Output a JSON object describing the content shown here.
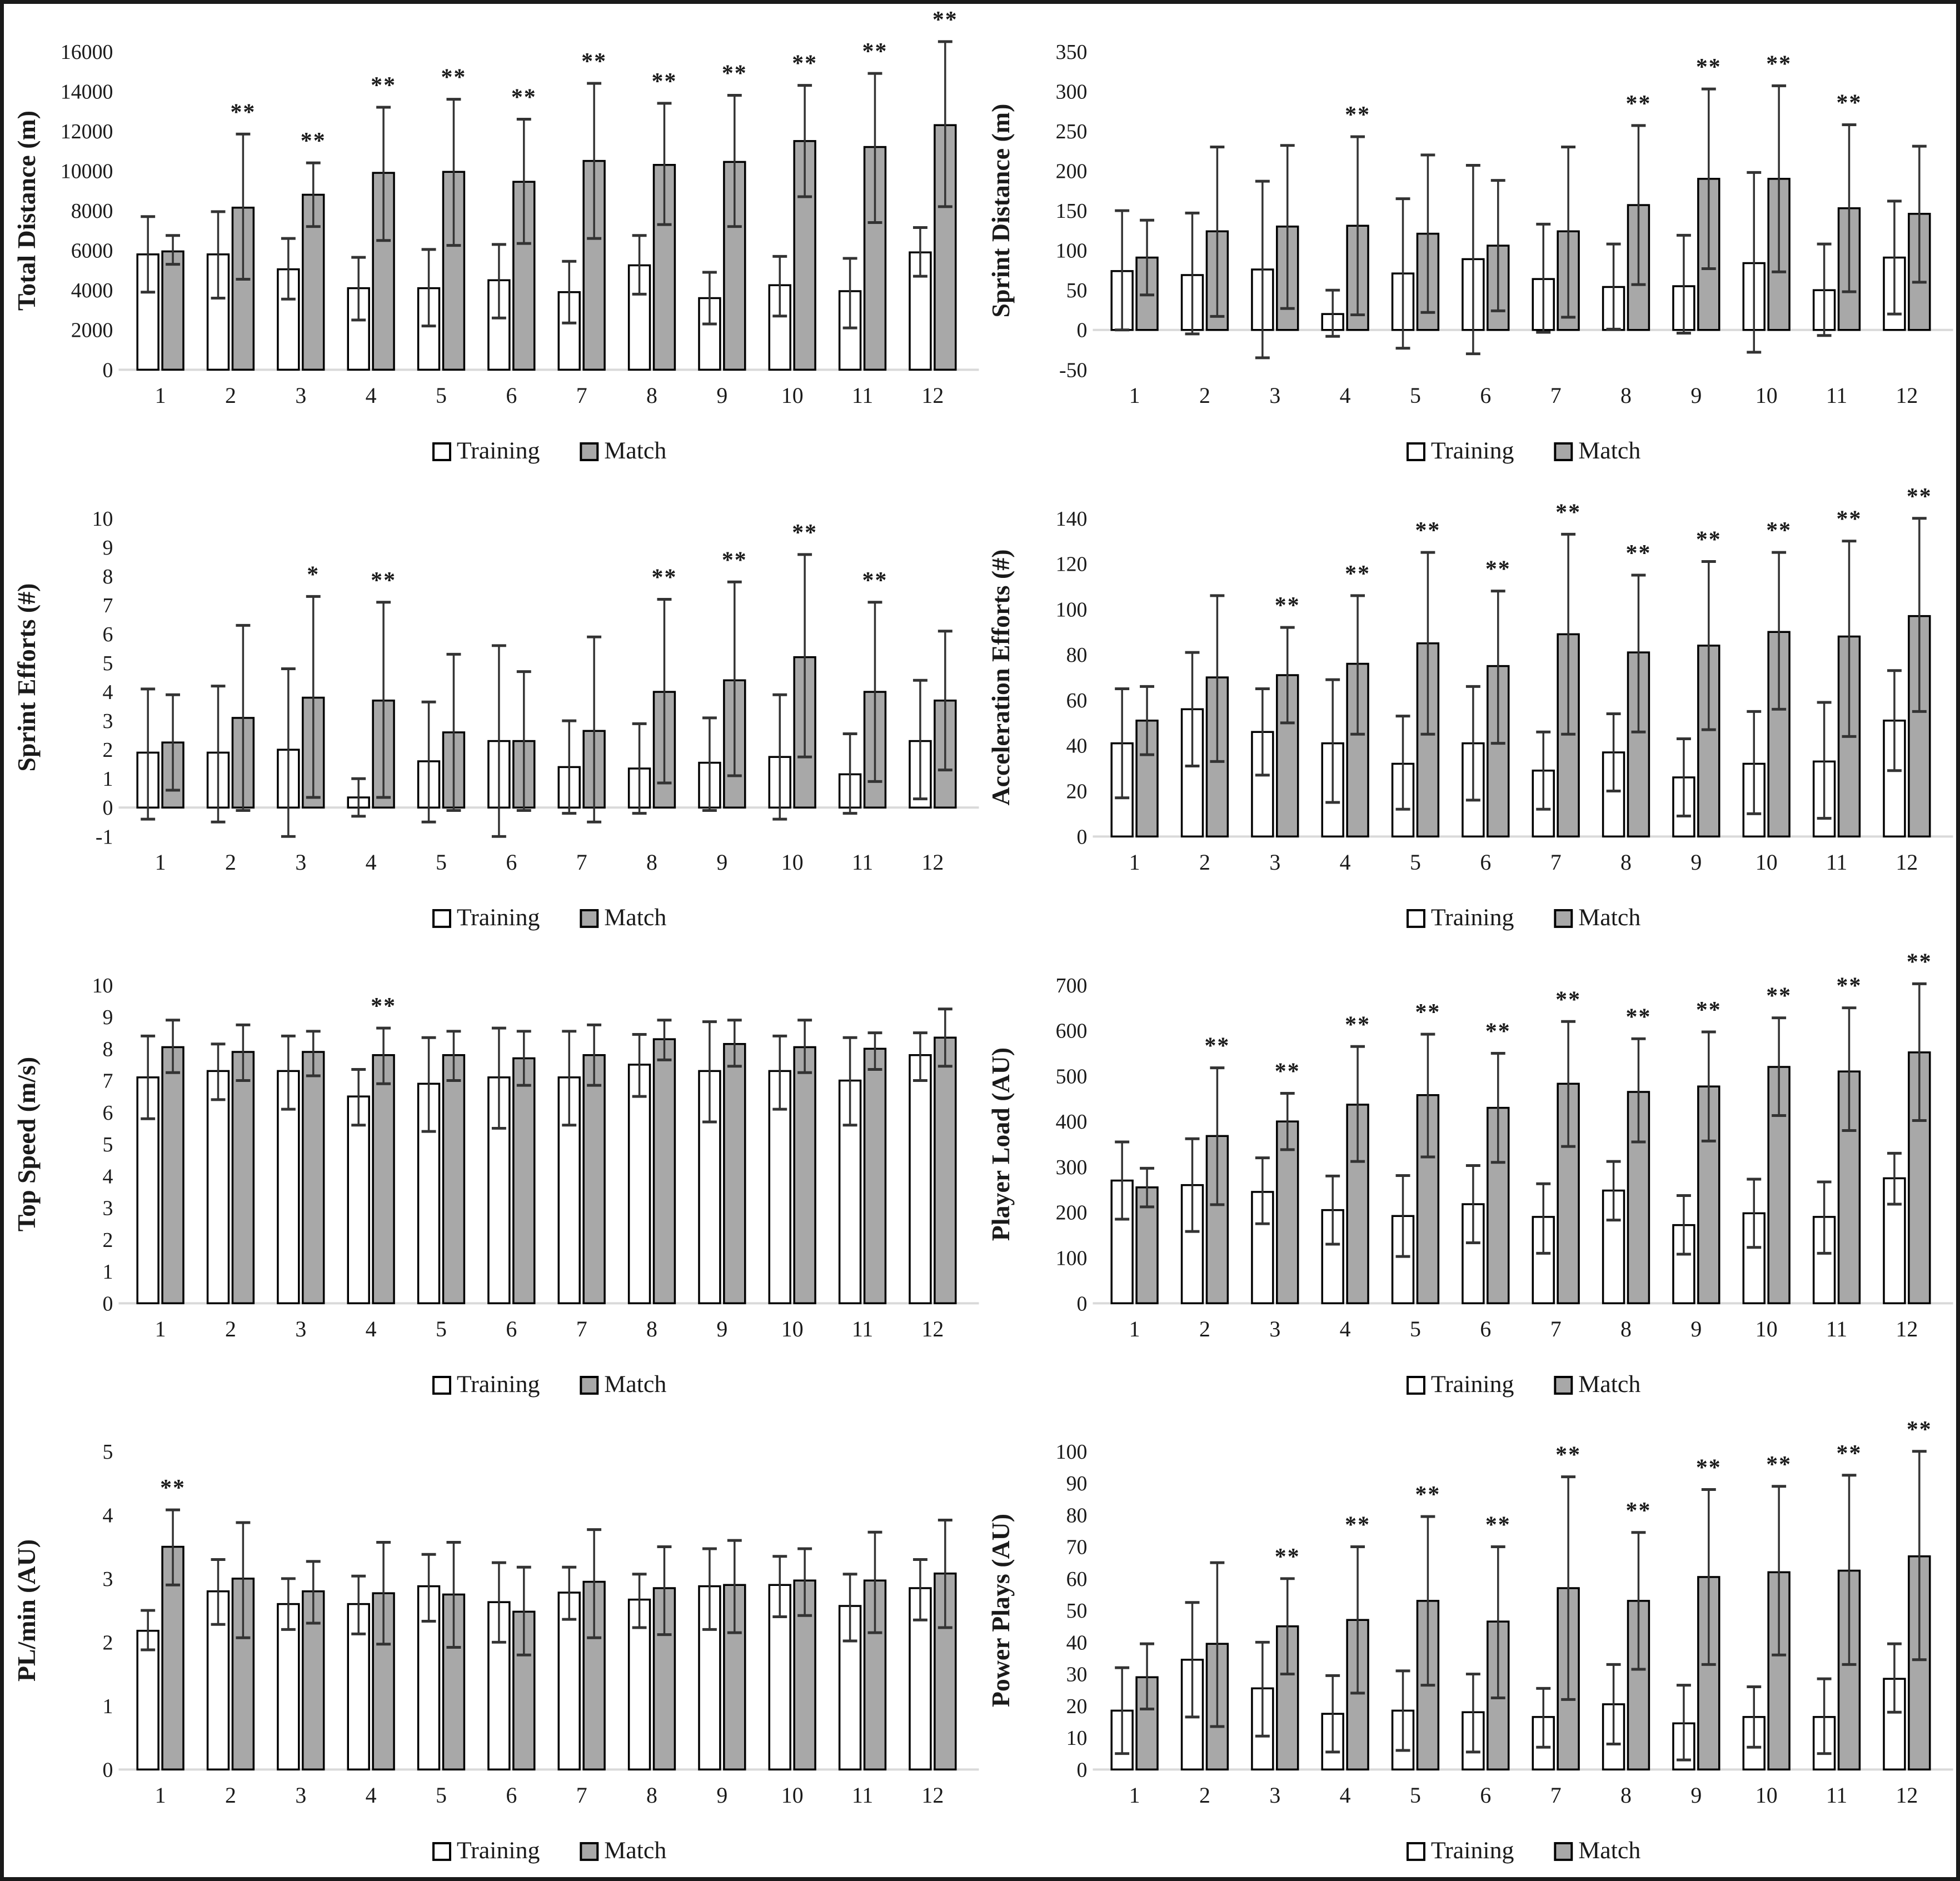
{
  "figure": {
    "legend": {
      "training": "Training",
      "match": "Match"
    },
    "colors": {
      "training_fill": "#ffffff",
      "match_fill": "#a8a8a8",
      "bar_stroke": "#000000",
      "error_bar": "#333333",
      "baseline": "#d9d9d9",
      "text": "#1a1a1a",
      "frame": "#1a1a1a"
    },
    "significance_note_markers": [
      "*",
      "**"
    ]
  },
  "chart_data": [
    {
      "type": "bar",
      "id": "total-distance",
      "ylabel": "Total Distance (m)",
      "ylim": [
        0,
        16000
      ],
      "ystep": 2000,
      "grid": false,
      "legend_position": "bottom",
      "categories": [
        "1",
        "2",
        "3",
        "4",
        "5",
        "6",
        "7",
        "8",
        "9",
        "10",
        "11",
        "12"
      ],
      "series": [
        {
          "name": "Training",
          "values": [
            5800,
            5800,
            5050,
            4100,
            4100,
            4500,
            3900,
            5250,
            3600,
            4250,
            3950,
            5900
          ],
          "err_low": [
            3900,
            3600,
            3550,
            2500,
            2200,
            2600,
            2350,
            3800,
            2300,
            2700,
            2100,
            4700
          ],
          "err_high": [
            7700,
            7950,
            6600,
            5650,
            6050,
            6300,
            5450,
            6750,
            4900,
            5700,
            5600,
            7150
          ]
        },
        {
          "name": "Match",
          "values": [
            5950,
            8150,
            8800,
            9900,
            9950,
            9450,
            10500,
            10300,
            10450,
            11500,
            11200,
            12300
          ],
          "err_low": [
            5300,
            4550,
            7200,
            6500,
            6250,
            6350,
            6600,
            7300,
            7200,
            8700,
            7400,
            8200
          ],
          "err_high": [
            6750,
            11850,
            10400,
            13200,
            13600,
            12600,
            14400,
            13400,
            13800,
            14300,
            14900,
            16500
          ]
        }
      ],
      "sig_match": [
        "",
        "**",
        "**",
        "**",
        "**",
        "**",
        "**",
        "**",
        "**",
        "**",
        "**",
        "**"
      ]
    },
    {
      "type": "bar",
      "id": "sprint-distance",
      "ylabel": "Sprint Distance (m)",
      "ylim": [
        -50,
        350
      ],
      "ystep": 50,
      "grid": false,
      "legend_position": "bottom",
      "categories": [
        "1",
        "2",
        "3",
        "4",
        "5",
        "6",
        "7",
        "8",
        "9",
        "10",
        "11",
        "12"
      ],
      "series": [
        {
          "name": "Training",
          "values": [
            74,
            69,
            76,
            20,
            71,
            89,
            64,
            54,
            55,
            84,
            50,
            91
          ],
          "err_low": [
            0,
            -5,
            -35,
            -8,
            -23,
            -30,
            -3,
            1,
            -4,
            -28,
            -7,
            20
          ],
          "err_high": [
            150,
            147,
            187,
            50,
            165,
            207,
            133,
            108,
            119,
            198,
            108,
            162
          ]
        },
        {
          "name": "Match",
          "values": [
            91,
            124,
            130,
            131,
            121,
            106,
            124,
            157,
            190,
            190,
            153,
            146
          ],
          "err_low": [
            44,
            17,
            27,
            19,
            22,
            24,
            16,
            57,
            77,
            73,
            48,
            60
          ],
          "err_high": [
            138,
            230,
            232,
            243,
            220,
            188,
            230,
            257,
            303,
            307,
            258,
            231
          ]
        }
      ],
      "sig_match": [
        "",
        "",
        "",
        "**",
        "",
        "",
        "",
        "**",
        "**",
        "**",
        "**",
        ""
      ]
    },
    {
      "type": "bar",
      "id": "sprint-efforts",
      "ylabel": "Sprint Efforts (#)",
      "ylim": [
        -1,
        10
      ],
      "ystep": 1,
      "grid": false,
      "legend_position": "bottom",
      "categories": [
        "1",
        "2",
        "3",
        "4",
        "5",
        "6",
        "7",
        "8",
        "9",
        "10",
        "11",
        "12"
      ],
      "series": [
        {
          "name": "Training",
          "values": [
            1.9,
            1.9,
            2.0,
            0.35,
            1.6,
            2.3,
            1.4,
            1.35,
            1.55,
            1.75,
            1.15,
            2.3
          ],
          "err_low": [
            -0.4,
            -0.5,
            -1.0,
            -0.3,
            -0.5,
            -1.0,
            -0.2,
            -0.2,
            -0.1,
            -0.4,
            -0.2,
            0.3
          ],
          "err_high": [
            4.1,
            4.2,
            4.8,
            1.0,
            3.65,
            5.6,
            3.0,
            2.9,
            3.1,
            3.9,
            2.55,
            4.4
          ]
        },
        {
          "name": "Match",
          "values": [
            2.25,
            3.1,
            3.8,
            3.7,
            2.6,
            2.3,
            2.65,
            4.0,
            4.4,
            5.2,
            4.0,
            3.7
          ],
          "err_low": [
            0.6,
            -0.1,
            0.35,
            0.35,
            -0.1,
            -0.1,
            -0.5,
            0.85,
            1.1,
            1.75,
            0.9,
            1.3
          ],
          "err_high": [
            3.9,
            6.3,
            7.3,
            7.1,
            5.3,
            4.7,
            5.9,
            7.2,
            7.8,
            8.75,
            7.1,
            6.1
          ]
        }
      ],
      "sig_match": [
        "",
        "",
        "*",
        "**",
        "",
        "",
        "",
        "**",
        "**",
        "**",
        "**",
        ""
      ]
    },
    {
      "type": "bar",
      "id": "acceleration-efforts",
      "ylabel": "Acceleration Efforts (#)",
      "ylim": [
        0,
        140
      ],
      "ystep": 20,
      "grid": false,
      "legend_position": "bottom",
      "categories": [
        "1",
        "2",
        "3",
        "4",
        "5",
        "6",
        "7",
        "8",
        "9",
        "10",
        "11",
        "12"
      ],
      "series": [
        {
          "name": "Training",
          "values": [
            41,
            56,
            46,
            41,
            32,
            41,
            29,
            37,
            26,
            32,
            33,
            51
          ],
          "err_low": [
            17,
            31,
            27,
            15,
            12,
            16,
            12,
            20,
            9,
            10,
            8,
            29
          ],
          "err_high": [
            65,
            81,
            65,
            69,
            53,
            66,
            46,
            54,
            43,
            55,
            59,
            73
          ]
        },
        {
          "name": "Match",
          "values": [
            51,
            70,
            71,
            76,
            85,
            75,
            89,
            81,
            84,
            90,
            88,
            97
          ],
          "err_low": [
            36,
            33,
            50,
            45,
            45,
            41,
            45,
            46,
            47,
            56,
            44,
            55
          ],
          "err_high": [
            66,
            106,
            92,
            106,
            125,
            108,
            133,
            115,
            121,
            125,
            130,
            140
          ]
        }
      ],
      "sig_match": [
        "",
        "",
        "**",
        "**",
        "**",
        "**",
        "**",
        "**",
        "**",
        "**",
        "**",
        "**"
      ]
    },
    {
      "type": "bar",
      "id": "top-speed",
      "ylabel": "Top Speed (m/s)",
      "ylim": [
        0,
        10
      ],
      "ystep": 1,
      "grid": false,
      "legend_position": "bottom",
      "categories": [
        "1",
        "2",
        "3",
        "4",
        "5",
        "6",
        "7",
        "8",
        "9",
        "10",
        "11",
        "12"
      ],
      "series": [
        {
          "name": "Training",
          "values": [
            7.1,
            7.3,
            7.3,
            6.5,
            6.9,
            7.1,
            7.1,
            7.5,
            7.3,
            7.3,
            7.0,
            7.8
          ],
          "err_low": [
            5.8,
            6.4,
            6.1,
            5.6,
            5.4,
            5.5,
            5.6,
            6.5,
            5.7,
            6.1,
            5.6,
            7.0
          ],
          "err_high": [
            8.4,
            8.15,
            8.4,
            7.35,
            8.35,
            8.65,
            8.55,
            8.45,
            8.85,
            8.4,
            8.35,
            8.5
          ]
        },
        {
          "name": "Match",
          "values": [
            8.05,
            7.9,
            7.9,
            7.8,
            7.8,
            7.7,
            7.8,
            8.3,
            8.15,
            8.05,
            8.0,
            8.35
          ],
          "err_low": [
            7.25,
            7.0,
            7.15,
            6.9,
            7.0,
            6.85,
            6.85,
            7.65,
            7.45,
            7.25,
            7.35,
            7.45
          ],
          "err_high": [
            8.9,
            8.75,
            8.55,
            8.65,
            8.55,
            8.55,
            8.75,
            8.9,
            8.9,
            8.9,
            8.5,
            9.25
          ]
        }
      ],
      "sig_match": [
        "",
        "",
        "",
        "**",
        "",
        "",
        "",
        "",
        "",
        "",
        "",
        ""
      ]
    },
    {
      "type": "bar",
      "id": "player-load",
      "ylabel": "Player Load (AU)",
      "ylim": [
        0,
        700
      ],
      "ystep": 100,
      "grid": false,
      "legend_position": "bottom",
      "categories": [
        "1",
        "2",
        "3",
        "4",
        "5",
        "6",
        "7",
        "8",
        "9",
        "10",
        "11",
        "12"
      ],
      "series": [
        {
          "name": "Training",
          "values": [
            270,
            260,
            245,
            205,
            192,
            218,
            190,
            248,
            172,
            198,
            190,
            275
          ],
          "err_low": [
            185,
            158,
            175,
            130,
            103,
            133,
            110,
            183,
            108,
            123,
            110,
            218
          ],
          "err_high": [
            355,
            362,
            320,
            280,
            281,
            303,
            263,
            312,
            237,
            273,
            267,
            330
          ]
        },
        {
          "name": "Match",
          "values": [
            255,
            368,
            400,
            437,
            458,
            430,
            483,
            465,
            477,
            520,
            510,
            552
          ],
          "err_low": [
            212,
            217,
            338,
            312,
            322,
            310,
            345,
            355,
            357,
            413,
            380,
            402
          ],
          "err_high": [
            297,
            518,
            462,
            565,
            592,
            550,
            620,
            582,
            597,
            628,
            650,
            703
          ]
        }
      ],
      "sig_match": [
        "",
        "**",
        "**",
        "**",
        "**",
        "**",
        "**",
        "**",
        "**",
        "**",
        "**",
        "**"
      ]
    },
    {
      "type": "bar",
      "id": "pl-per-min",
      "ylabel": "PL/min (AU)",
      "ylim": [
        0,
        5
      ],
      "ystep": 1,
      "grid": false,
      "legend_position": "bottom",
      "categories": [
        "1",
        "2",
        "3",
        "4",
        "5",
        "6",
        "7",
        "8",
        "9",
        "10",
        "11",
        "12"
      ],
      "series": [
        {
          "name": "Training",
          "values": [
            2.18,
            2.8,
            2.6,
            2.6,
            2.88,
            2.63,
            2.78,
            2.67,
            2.88,
            2.9,
            2.57,
            2.85
          ],
          "err_low": [
            1.88,
            2.28,
            2.2,
            2.13,
            2.33,
            2.0,
            2.36,
            2.23,
            2.2,
            2.4,
            2.02,
            2.35
          ],
          "err_high": [
            2.5,
            3.3,
            3.0,
            3.04,
            3.38,
            3.25,
            3.18,
            3.07,
            3.47,
            3.35,
            3.07,
            3.3
          ]
        },
        {
          "name": "Match",
          "values": [
            3.5,
            3.0,
            2.8,
            2.77,
            2.75,
            2.48,
            2.95,
            2.85,
            2.9,
            2.97,
            2.97,
            3.08
          ],
          "err_low": [
            2.9,
            2.07,
            2.3,
            1.97,
            1.92,
            1.8,
            2.07,
            2.12,
            2.15,
            2.42,
            2.15,
            2.23
          ],
          "err_high": [
            4.08,
            3.88,
            3.27,
            3.57,
            3.57,
            3.18,
            3.77,
            3.5,
            3.6,
            3.47,
            3.73,
            3.92
          ]
        }
      ],
      "sig_match": [
        "**",
        "",
        "",
        "",
        "",
        "",
        "",
        "",
        "",
        "",
        "",
        ""
      ]
    },
    {
      "type": "bar",
      "id": "power-plays",
      "ylabel": "Power Plays (AU)",
      "ylim": [
        0,
        100
      ],
      "ystep": 10,
      "grid": false,
      "legend_position": "bottom",
      "categories": [
        "1",
        "2",
        "3",
        "4",
        "5",
        "6",
        "7",
        "8",
        "9",
        "10",
        "11",
        "12"
      ],
      "series": [
        {
          "name": "Training",
          "values": [
            18.5,
            34.5,
            25.5,
            17.5,
            18.5,
            18,
            16.5,
            20.5,
            14.5,
            16.5,
            16.5,
            28.5
          ],
          "err_low": [
            5,
            16.5,
            10.5,
            5.5,
            6,
            5.5,
            7,
            8,
            3,
            7,
            5,
            18
          ],
          "err_high": [
            32,
            52.5,
            40,
            29.5,
            31,
            30,
            25.5,
            33,
            26.5,
            26,
            28.5,
            39.5
          ]
        },
        {
          "name": "Match",
          "values": [
            29,
            39.5,
            45,
            47,
            53,
            46.5,
            57,
            53,
            60.5,
            62,
            62.5,
            67
          ],
          "err_low": [
            19,
            13.5,
            30,
            24,
            26.5,
            22.5,
            22,
            31.5,
            33,
            36,
            33,
            34.5
          ],
          "err_high": [
            39.5,
            65,
            60,
            70,
            79.5,
            70,
            92,
            74.5,
            88,
            89,
            92.5,
            100
          ]
        }
      ],
      "sig_match": [
        "",
        "",
        "**",
        "**",
        "**",
        "**",
        "**",
        "**",
        "**",
        "**",
        "**",
        "**"
      ]
    }
  ]
}
